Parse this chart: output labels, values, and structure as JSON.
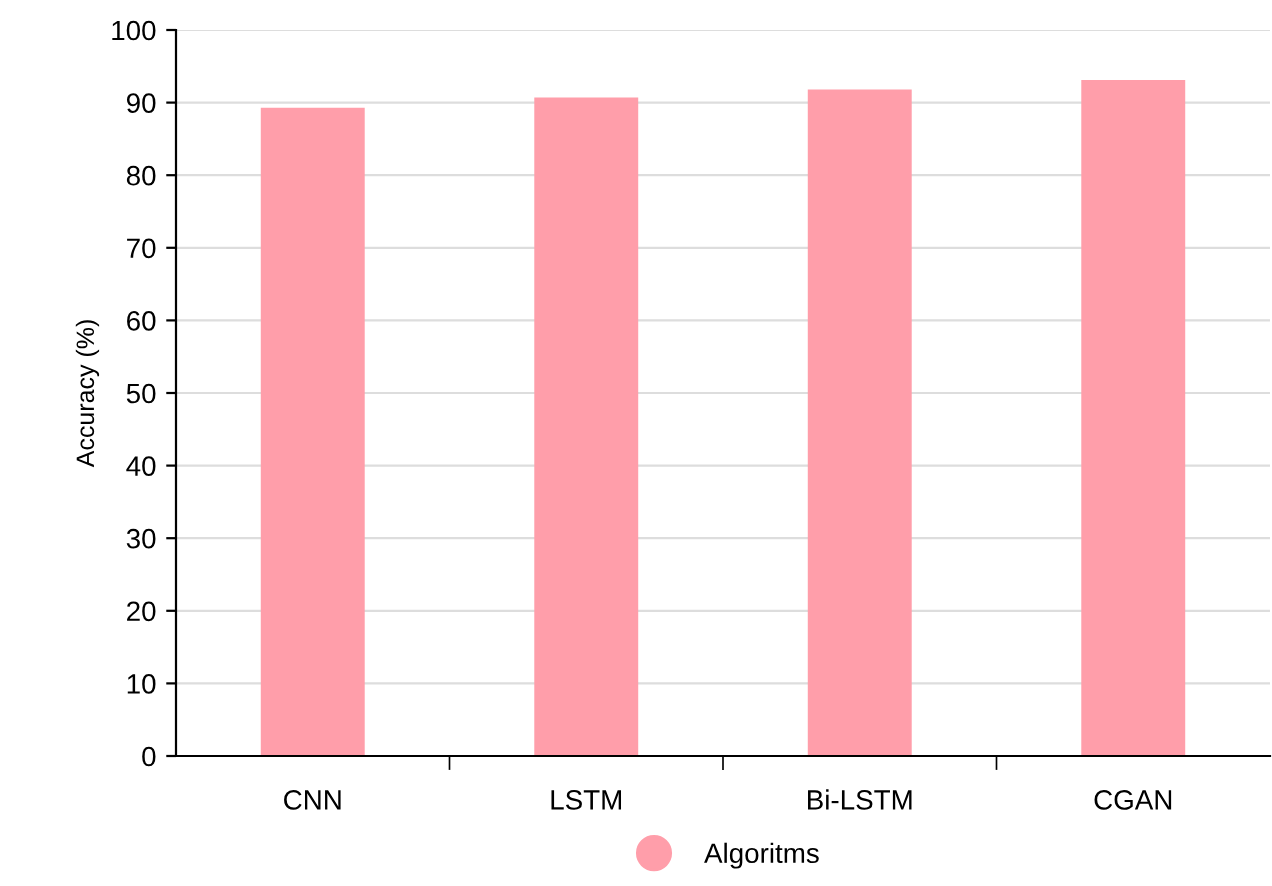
{
  "chart_data": {
    "type": "bar",
    "ylabel": "Accuracy (%)",
    "categories": [
      "CNN",
      "LSTM",
      "Bi-LSTM",
      "CGAN"
    ],
    "series": [
      {
        "name": "Algoritms",
        "color": "#ff9eaa",
        "values": [
          89.3,
          90.7,
          91.8,
          93.1
        ]
      }
    ],
    "ylim": [
      0,
      100
    ],
    "yticks": [
      0,
      10,
      20,
      30,
      40,
      50,
      60,
      70,
      80,
      90,
      100
    ],
    "grid": "y",
    "legend": "bottom"
  }
}
